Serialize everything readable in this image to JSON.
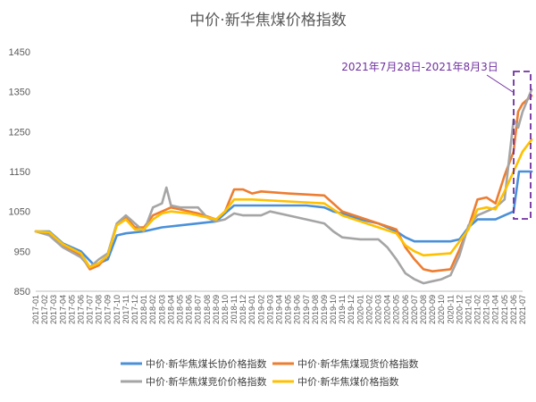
{
  "chart_data": {
    "type": "line",
    "title": "中价·新华焦煤价格指数",
    "ylim": [
      850,
      1450
    ],
    "yticks": [
      850,
      950,
      1050,
      1150,
      1250,
      1350,
      1450
    ],
    "x_tick_labels": [
      "2017-01",
      "2017-02",
      "2017-03",
      "2017-04",
      "2017-05",
      "2017-06",
      "2017-07",
      "2017-08",
      "2017-09",
      "2017-10",
      "2017-11",
      "2017-12",
      "2018-01",
      "2018-02",
      "2018-03",
      "2018-04",
      "2018-05",
      "2018-06",
      "2018-07",
      "2018-08",
      "2018-09",
      "2018-10",
      "2018-11",
      "2018-12",
      "2019-01",
      "2019-02",
      "2019-03",
      "2019-04",
      "2019-05",
      "2019-06",
      "2019-07",
      "2019-08",
      "2019-09",
      "2019-10",
      "2019-11",
      "2019-12",
      "2020-01",
      "2020-02",
      "2020-03",
      "2020-04",
      "2020-05",
      "2020-06",
      "2020-07",
      "2020-08",
      "2020-09",
      "2020-10",
      "2020-11",
      "2020-12",
      "2021-01",
      "2021-02",
      "2021-03",
      "2021-04",
      "2021-05",
      "2021-06",
      "2021-07"
    ],
    "grid": false,
    "legend_position": "bottom",
    "annotation": "2021年7月28日-2021年8月3日",
    "series": [
      {
        "name": "中价·新华焦煤长协价格指数",
        "color": "#4a90d9",
        "points": [
          [
            0,
            1000
          ],
          [
            1.5,
            1000
          ],
          [
            3,
            970
          ],
          [
            5,
            950
          ],
          [
            6.5,
            915
          ],
          [
            8,
            930
          ],
          [
            9,
            990
          ],
          [
            10,
            995
          ],
          [
            12,
            1000
          ],
          [
            14,
            1010
          ],
          [
            18,
            1020
          ],
          [
            20,
            1025
          ],
          [
            21,
            1045
          ],
          [
            22,
            1065
          ],
          [
            24,
            1065
          ],
          [
            30,
            1065
          ],
          [
            32,
            1060
          ],
          [
            33,
            1050
          ],
          [
            34,
            1045
          ],
          [
            36,
            1030
          ],
          [
            38,
            1020
          ],
          [
            40,
            1000
          ],
          [
            41,
            985
          ],
          [
            42,
            975
          ],
          [
            46,
            975
          ],
          [
            47,
            980
          ],
          [
            48,
            1010
          ],
          [
            49,
            1030
          ],
          [
            51,
            1030
          ],
          [
            52,
            1040
          ],
          [
            53,
            1050
          ],
          [
            53.6,
            1150
          ],
          [
            55,
            1150
          ]
        ]
      },
      {
        "name": "中价·新华焦煤现货价格指数",
        "color": "#ed7d31",
        "points": [
          [
            0,
            1000
          ],
          [
            1.5,
            995
          ],
          [
            3,
            965
          ],
          [
            5,
            940
          ],
          [
            6,
            905
          ],
          [
            7,
            915
          ],
          [
            8,
            940
          ],
          [
            9,
            1020
          ],
          [
            10,
            1035
          ],
          [
            11,
            1010
          ],
          [
            12,
            1010
          ],
          [
            13,
            1040
          ],
          [
            14,
            1050
          ],
          [
            15,
            1060
          ],
          [
            16,
            1055
          ],
          [
            18,
            1045
          ],
          [
            20,
            1030
          ],
          [
            21,
            1050
          ],
          [
            22,
            1105
          ],
          [
            23,
            1105
          ],
          [
            24,
            1095
          ],
          [
            25,
            1100
          ],
          [
            28,
            1095
          ],
          [
            32,
            1090
          ],
          [
            34,
            1050
          ],
          [
            36,
            1035
          ],
          [
            38,
            1020
          ],
          [
            40,
            1005
          ],
          [
            41,
            960
          ],
          [
            42,
            930
          ],
          [
            43,
            905
          ],
          [
            44,
            900
          ],
          [
            46,
            905
          ],
          [
            47,
            955
          ],
          [
            48,
            1010
          ],
          [
            49,
            1080
          ],
          [
            50,
            1085
          ],
          [
            51,
            1070
          ],
          [
            52,
            1140
          ],
          [
            53,
            1200
          ],
          [
            53.5,
            1300
          ],
          [
            54,
            1320
          ],
          [
            55,
            1340
          ]
        ]
      },
      {
        "name": "中价·新华焦煤竞价价格指数",
        "color": "#a5a5a5",
        "points": [
          [
            0,
            1000
          ],
          [
            1.5,
            990
          ],
          [
            3,
            960
          ],
          [
            5,
            935
          ],
          [
            6,
            910
          ],
          [
            7,
            930
          ],
          [
            8,
            945
          ],
          [
            9,
            1020
          ],
          [
            10,
            1040
          ],
          [
            12,
            1000
          ],
          [
            13,
            1060
          ],
          [
            14,
            1070
          ],
          [
            14.5,
            1110
          ],
          [
            15,
            1065
          ],
          [
            16,
            1060
          ],
          [
            18,
            1060
          ],
          [
            19,
            1035
          ],
          [
            20,
            1025
          ],
          [
            21,
            1030
          ],
          [
            22,
            1045
          ],
          [
            23,
            1040
          ],
          [
            25,
            1040
          ],
          [
            26,
            1050
          ],
          [
            28,
            1040
          ],
          [
            30,
            1030
          ],
          [
            32,
            1020
          ],
          [
            33,
            1000
          ],
          [
            34,
            985
          ],
          [
            36,
            980
          ],
          [
            38,
            980
          ],
          [
            39,
            960
          ],
          [
            40,
            930
          ],
          [
            41,
            895
          ],
          [
            42,
            880
          ],
          [
            43,
            870
          ],
          [
            44,
            875
          ],
          [
            45,
            880
          ],
          [
            46,
            890
          ],
          [
            47,
            940
          ],
          [
            48,
            1015
          ],
          [
            49,
            1040
          ],
          [
            50,
            1050
          ],
          [
            51,
            1060
          ],
          [
            52,
            1080
          ],
          [
            53,
            1280
          ],
          [
            53.5,
            1260
          ],
          [
            54,
            1300
          ],
          [
            55,
            1355
          ]
        ]
      },
      {
        "name": "中价·新华焦煤价格指数",
        "color": "#ffc000",
        "points": [
          [
            0,
            1000
          ],
          [
            1.5,
            998
          ],
          [
            3,
            968
          ],
          [
            5,
            945
          ],
          [
            6,
            910
          ],
          [
            7,
            920
          ],
          [
            8,
            940
          ],
          [
            9,
            1015
          ],
          [
            10,
            1030
          ],
          [
            11,
            1005
          ],
          [
            12,
            1005
          ],
          [
            13,
            1030
          ],
          [
            14,
            1045
          ],
          [
            15,
            1050
          ],
          [
            17,
            1045
          ],
          [
            18,
            1040
          ],
          [
            20,
            1030
          ],
          [
            21,
            1050
          ],
          [
            22,
            1080
          ],
          [
            24,
            1080
          ],
          [
            28,
            1075
          ],
          [
            32,
            1070
          ],
          [
            34,
            1040
          ],
          [
            36,
            1025
          ],
          [
            38,
            1010
          ],
          [
            40,
            995
          ],
          [
            41,
            965
          ],
          [
            42,
            950
          ],
          [
            43,
            940
          ],
          [
            46,
            945
          ],
          [
            47,
            975
          ],
          [
            48,
            1005
          ],
          [
            49,
            1055
          ],
          [
            50,
            1060
          ],
          [
            51,
            1055
          ],
          [
            52,
            1100
          ],
          [
            53,
            1150
          ],
          [
            54,
            1200
          ],
          [
            55,
            1230
          ]
        ]
      }
    ]
  }
}
